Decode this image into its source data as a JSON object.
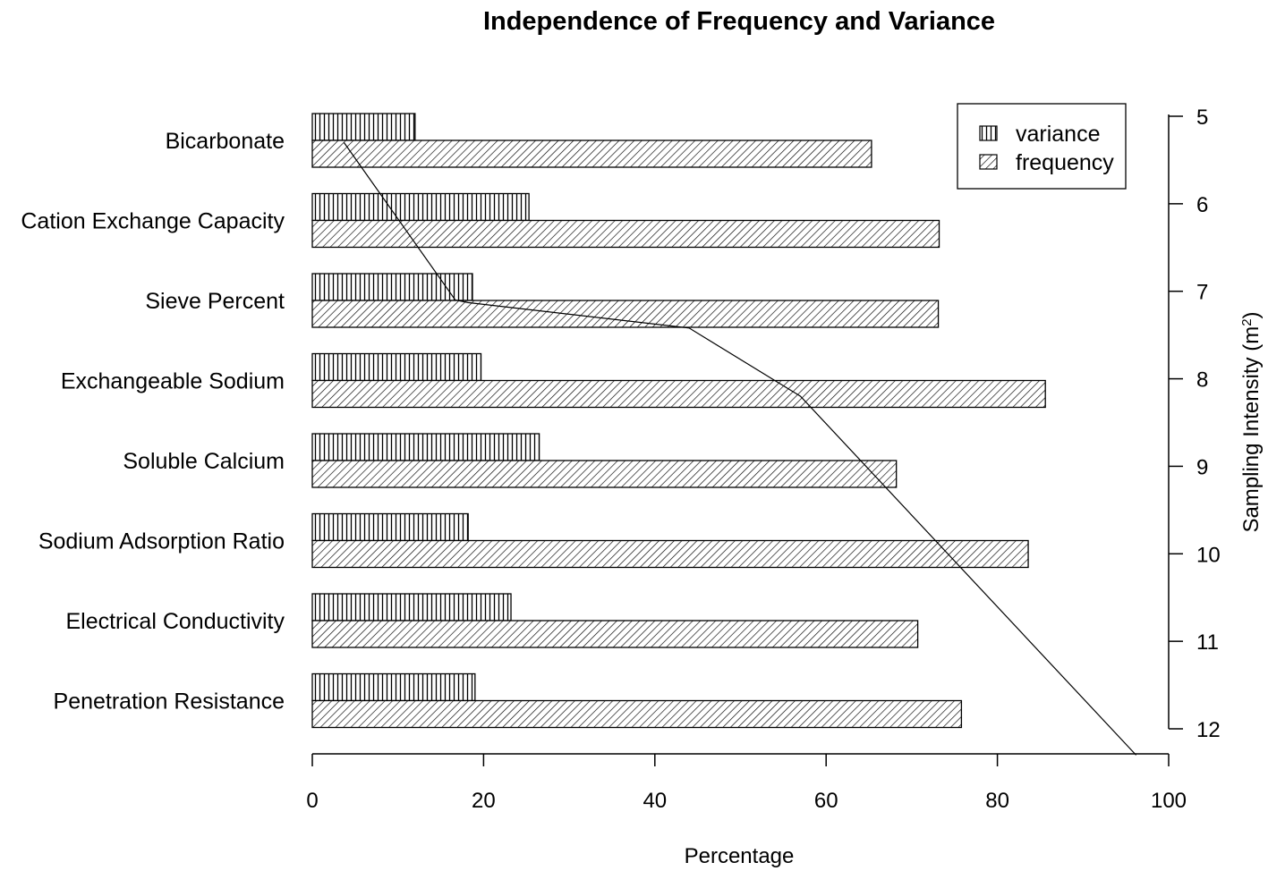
{
  "chart_data": {
    "type": "bar",
    "orientation": "horizontal",
    "title": "Independence of Frequency and Variance",
    "xlabel": "Percentage",
    "xlim": [
      0,
      100
    ],
    "xticks": [
      "0",
      "20",
      "40",
      "60",
      "80",
      "100"
    ],
    "categories": [
      "Bicarbonate",
      "Cation Exchange Capacity",
      "Sieve Percent",
      "Exchangeable Sodium",
      "Soluble Calcium",
      "Sodium Adsorption Ratio",
      "Electrical Conductivity",
      "Penetration Resistance"
    ],
    "series": [
      {
        "name": "variance",
        "pattern": "vertical-lines",
        "values": [
          12,
          25.3,
          18.7,
          19.7,
          26.5,
          18.2,
          23.2,
          19
        ]
      },
      {
        "name": "frequency",
        "pattern": "diagonal-hatch",
        "values": [
          65.3,
          73.2,
          73.1,
          85.6,
          68.2,
          83.6,
          70.7,
          75.8
        ]
      }
    ],
    "secondary_axis": {
      "label": "Sampling Intensity (m",
      "label_superscript": "2",
      "label_close": ")",
      "range": [
        5,
        12
      ],
      "ticks": [
        "5",
        "6",
        "7",
        "8",
        "9",
        "10",
        "11",
        "12"
      ],
      "position": "right",
      "inverted": true
    },
    "line": {
      "x": [
        3.7,
        16.7,
        18.2,
        44,
        57,
        96.2
      ],
      "y": [
        5.3,
        7.1,
        7.13,
        7.42,
        8.2,
        12.3
      ]
    },
    "legend": {
      "position": "top-right",
      "entries": [
        "variance",
        "frequency"
      ]
    },
    "grid": false
  }
}
